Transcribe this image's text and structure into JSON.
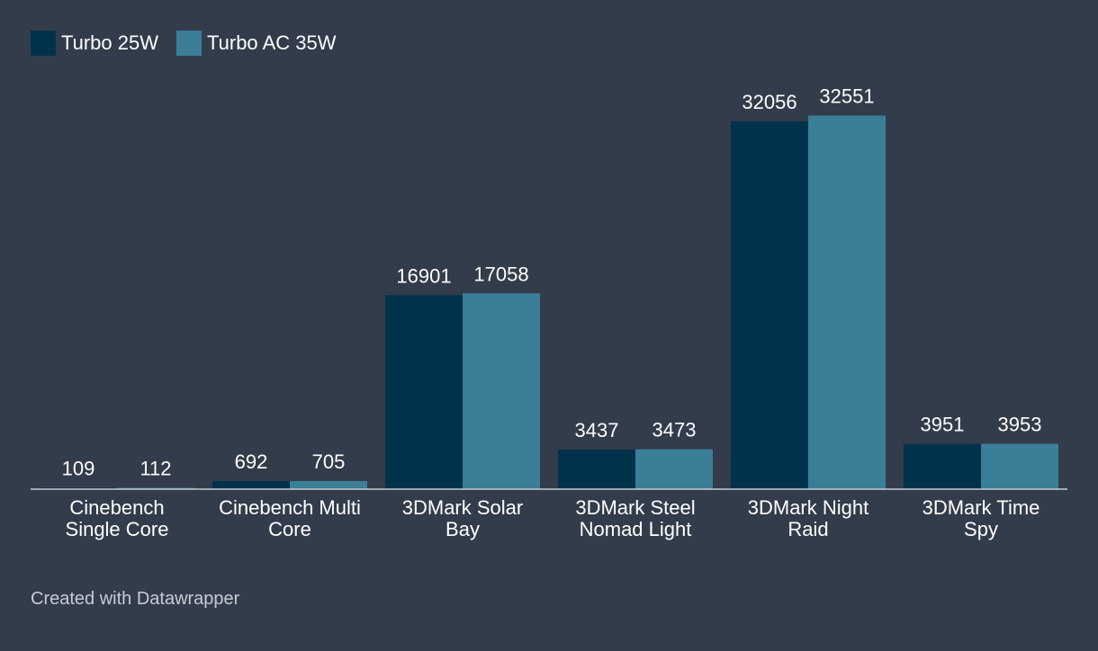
{
  "chart_data": {
    "type": "bar",
    "title": "",
    "xlabel": "",
    "ylabel": "",
    "ylim": [
      0,
      34000
    ],
    "grid": false,
    "legend_position": "top-left",
    "categories": [
      [
        "Cinebench",
        "Single Core"
      ],
      [
        "Cinebench Multi",
        "Core"
      ],
      [
        "3DMark Solar",
        "Bay"
      ],
      [
        "3DMark Steel",
        "Nomad Light"
      ],
      [
        "3DMark Night",
        "Raid"
      ],
      [
        "3DMark Time",
        "Spy"
      ]
    ],
    "series": [
      {
        "name": "Turbo 25W",
        "color": "#01324b",
        "values": [
          109,
          692,
          16901,
          3437,
          32056,
          3951
        ]
      },
      {
        "name": "Turbo AC 35W",
        "color": "#3a7e98",
        "values": [
          112,
          705,
          17058,
          3473,
          32551,
          3953
        ]
      }
    ]
  },
  "legend": {
    "items": [
      {
        "label": "Turbo 25W",
        "color": "#01324b"
      },
      {
        "label": "Turbo AC 35W",
        "color": "#3a7e98"
      }
    ]
  },
  "footer": {
    "credit": "Created with Datawrapper"
  },
  "colors": {
    "background": "#333c4b",
    "axis": "#c8ccd2"
  }
}
